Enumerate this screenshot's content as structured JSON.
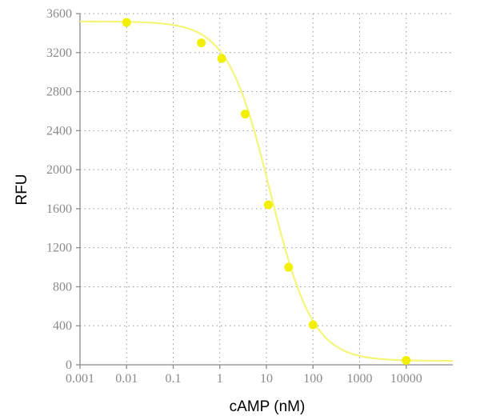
{
  "chart_data": {
    "type": "scatter",
    "xlabel": "cAMP (nM)",
    "ylabel": "RFU",
    "x_scale": "log",
    "xlim": [
      0.001,
      100000
    ],
    "ylim": [
      0,
      3600
    ],
    "x_ticks": [
      0.001,
      0.01,
      0.1,
      1,
      10,
      100,
      1000,
      10000
    ],
    "x_tick_labels": [
      "0.001",
      "0.01",
      "0.1",
      "1",
      "10",
      "100",
      "1000",
      "10000"
    ],
    "y_ticks": [
      0,
      400,
      800,
      1200,
      1600,
      2000,
      2400,
      2800,
      3200,
      3600
    ],
    "y_tick_labels": [
      "0",
      "400",
      "800",
      "1200",
      "1600",
      "2000",
      "2400",
      "2800",
      "3200",
      "3600"
    ],
    "grid": true,
    "color": "#f2f000",
    "curve_color": "#f5f57a",
    "series": [
      {
        "points": [
          {
            "x": 0.01,
            "y": 3510
          },
          {
            "x": 0.4,
            "y": 3300
          },
          {
            "x": 1.1,
            "y": 3140
          },
          {
            "x": 3.5,
            "y": 2570
          },
          {
            "x": 11,
            "y": 1640
          },
          {
            "x": 30,
            "y": 1000
          },
          {
            "x": 100,
            "y": 410
          },
          {
            "x": 10000,
            "y": 45
          }
        ],
        "fit": {
          "top": 3520,
          "bottom": 40,
          "ec50": 12,
          "hill": 0.95
        }
      }
    ]
  }
}
